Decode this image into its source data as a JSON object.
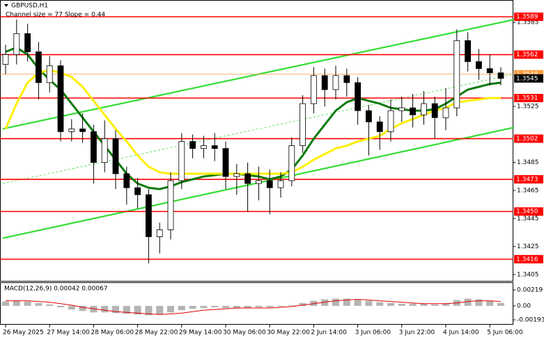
{
  "chart_data": {
    "type": "candlestick",
    "title": "GBPUSD,H1",
    "subtitle": "Channel size = 77 Slope = 0.44",
    "open": [
      1.3555,
      1.3562,
      1.3577,
      1.3564,
      1.3542,
      1.3554,
      1.3507,
      1.3509,
      1.3507,
      1.3485,
      1.3502,
      1.3477,
      1.3467,
      1.3462,
      1.3432,
      1.3437,
      1.3472,
      1.35,
      1.3495,
      1.3497,
      1.3495,
      1.3475,
      1.3477,
      1.347,
      1.3472,
      1.3467,
      1.3472,
      1.3497,
      1.3527,
      1.3547,
      1.3537,
      1.3547,
      1.3542,
      1.3522,
      1.3514,
      1.3507,
      1.3522,
      1.3524,
      1.3519,
      1.3527,
      1.3517,
      1.3524,
      1.3572,
      1.3557,
      1.3552,
      1.3549
    ],
    "high": [
      1.3569,
      1.3587,
      1.3584,
      1.3571,
      1.3561,
      1.3558,
      1.3516,
      1.352,
      1.3512,
      1.3515,
      1.3508,
      1.3482,
      1.3474,
      1.3466,
      1.3442,
      1.3478,
      1.3506,
      1.3505,
      1.3504,
      1.3506,
      1.35,
      1.3484,
      1.3485,
      1.3482,
      1.348,
      1.3478,
      1.3503,
      1.3533,
      1.3553,
      1.3552,
      1.3554,
      1.3552,
      1.3546,
      1.3526,
      1.3518,
      1.353,
      1.3532,
      1.3534,
      1.3536,
      1.3532,
      1.3538,
      1.358,
      1.3578,
      1.3566,
      1.3562,
      1.3553
    ],
    "low": [
      1.3548,
      1.3555,
      1.3557,
      1.353,
      1.3535,
      1.35,
      1.35,
      1.3499,
      1.347,
      1.3478,
      1.3466,
      1.3455,
      1.3452,
      1.3413,
      1.342,
      1.343,
      1.3466,
      1.3488,
      1.3488,
      1.3486,
      1.3466,
      1.3462,
      1.345,
      1.3458,
      1.3448,
      1.346,
      1.3468,
      1.3492,
      1.352,
      1.3525,
      1.353,
      1.3532,
      1.3512,
      1.349,
      1.3494,
      1.35,
      1.3514,
      1.351,
      1.3512,
      1.3502,
      1.3508,
      1.3518,
      1.355,
      1.3544,
      1.354,
      1.354
    ],
    "close": [
      1.3562,
      1.3577,
      1.3564,
      1.3542,
      1.3554,
      1.3507,
      1.3509,
      1.3507,
      1.3485,
      1.3502,
      1.3477,
      1.3467,
      1.3462,
      1.3432,
      1.3437,
      1.3472,
      1.35,
      1.3495,
      1.3497,
      1.3495,
      1.3475,
      1.3477,
      1.347,
      1.3472,
      1.3467,
      1.3472,
      1.3497,
      1.3527,
      1.3547,
      1.3537,
      1.3547,
      1.3542,
      1.3522,
      1.3514,
      1.3507,
      1.3522,
      1.3524,
      1.3519,
      1.3527,
      1.3517,
      1.3524,
      1.3572,
      1.3557,
      1.3552,
      1.3549,
      1.3545
    ],
    "xticks": [
      {
        "value": 0,
        "label": "26 May 2025"
      },
      {
        "value": 4,
        "label": "27 May 14:00"
      },
      {
        "value": 8,
        "label": "28 May 06:00"
      },
      {
        "value": 12,
        "label": "28 May 22:00"
      },
      {
        "value": 16,
        "label": "29 May 14:00"
      },
      {
        "value": 20,
        "label": "30 May 06:00"
      },
      {
        "value": 24,
        "label": "30 May 22:00"
      },
      {
        "value": 28,
        "label": "2 Jun 14:00"
      },
      {
        "value": 32,
        "label": "3 Jun 06:00"
      },
      {
        "value": 36,
        "label": "3 Jun 22:00"
      },
      {
        "value": 40,
        "label": "4 Jun 14:00"
      },
      {
        "value": 44,
        "label": "5 Jun 06:00"
      }
    ],
    "ylim": [
      1.34,
      1.3597
    ],
    "yticks": [
      1.3585,
      1.3525,
      1.3485,
      1.3465,
      1.3445,
      1.3425,
      1.3405
    ],
    "levels": [
      1.3589,
      1.3562,
      1.3531,
      1.3502,
      1.3473,
      {
        "value": 1.345,
        "label": "1.3450"
      },
      1.3416
    ],
    "level_color": "#ff0000",
    "bid": 1.3545,
    "ask": 1.3548,
    "series": [
      {
        "color": "#0b7a0b",
        "values": [
          1.3564,
          1.3567,
          1.3562,
          1.3552,
          1.3544,
          1.3537,
          1.3527,
          1.3517,
          1.3507,
          1.3497,
          1.3487,
          1.3477,
          1.347,
          1.3467,
          1.3466,
          1.3468,
          1.3471,
          1.3473,
          1.3475,
          1.3476,
          1.3477,
          1.3477,
          1.3476,
          1.3475,
          1.3473,
          1.3475,
          1.348,
          1.349,
          1.3502,
          1.3512,
          1.3522,
          1.3528,
          1.3531,
          1.3529,
          1.3527,
          1.3524,
          1.3523,
          1.3522,
          1.3522,
          1.3523,
          1.3527,
          1.3532,
          1.3537,
          1.3539,
          1.3541,
          1.3542
        ]
      },
      {
        "color": "#ffee00",
        "values": [
          1.3509,
          1.3527,
          1.3542,
          1.3549,
          1.3551,
          1.3549,
          1.3546,
          1.3539,
          1.3529,
          1.3519,
          1.3509,
          1.35,
          1.349,
          1.3482,
          1.3478,
          1.3477,
          1.3477,
          1.3477,
          1.3477,
          1.3477,
          1.3477,
          1.3477,
          1.3477,
          1.3477,
          1.3477,
          1.3477,
          1.3478,
          1.3482,
          1.3487,
          1.3491,
          1.3495,
          1.3497,
          1.35,
          1.3502,
          1.3504,
          1.3509,
          1.3513,
          1.3516,
          1.3519,
          1.3522,
          1.3524,
          1.3528,
          1.3529,
          1.353,
          1.3531,
          1.3531
        ]
      }
    ],
    "channel": {
      "x": [
        -0.25,
        46.2
      ],
      "upper": [
        1.3509,
        1.3587
      ],
      "middle": [
        1.347,
        1.3548
      ],
      "lower": [
        1.3431,
        1.351
      ],
      "color": "#33dd33"
    },
    "macd": {
      "title": "MACD(12,26,9) 0.00042 0.00067",
      "histogram": [
        0.0006,
        0.0007,
        0.0006,
        0.0004,
        0.0002,
        -0.0002,
        -0.0005,
        -0.0007,
        -0.0009,
        -0.0009,
        -0.001,
        -0.0011,
        -0.0012,
        -0.0013,
        -0.0012,
        -0.0009,
        -0.0006,
        -0.0004,
        -0.0003,
        -0.0002,
        -0.0003,
        -0.0003,
        -0.0003,
        -0.0002,
        -0.0002,
        -0.0001,
        0.0001,
        0.0004,
        0.0007,
        0.0009,
        0.001,
        0.001,
        0.0009,
        0.0007,
        0.0005,
        0.0004,
        0.0003,
        0.0003,
        0.0003,
        0.0002,
        0.0003,
        0.0008,
        0.001,
        0.0009,
        0.0007,
        0.0004
      ],
      "signal": [
        0.0007,
        0.0007,
        0.0007,
        0.0006,
        0.0005,
        0.0003,
        0.0001,
        -0.0002,
        -0.0004,
        -0.0006,
        -0.0008,
        -0.0009,
        -0.001,
        -0.0011,
        -0.0012,
        -0.0011,
        -0.001,
        -0.0008,
        -0.0006,
        -0.0005,
        -0.0004,
        -0.0003,
        -0.0003,
        -0.0003,
        -0.0003,
        -0.0002,
        -0.0001,
        0.0001,
        0.0003,
        0.0005,
        0.0007,
        0.0008,
        0.0009,
        0.0008,
        0.0007,
        0.0006,
        0.0005,
        0.0004,
        0.0003,
        0.0003,
        0.0003,
        0.0004,
        0.0006,
        0.0007,
        0.0007,
        0.0006
      ],
      "histogram_color": "#b4b4b4",
      "signal_color": "#e00000",
      "ylim": [
        -0.0025,
        0.00296
      ],
      "yticks": [
        0.00219,
        {
          "value": 0,
          "label": "0.00"
        },
        -0.00193
      ]
    }
  }
}
